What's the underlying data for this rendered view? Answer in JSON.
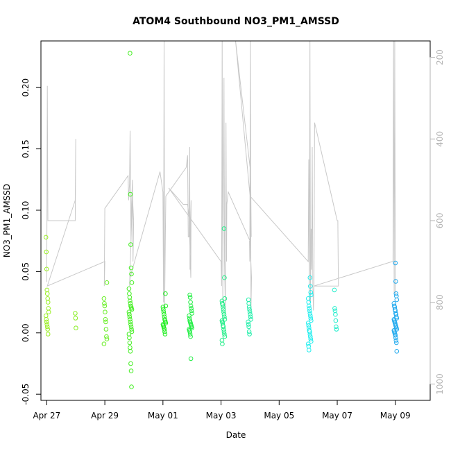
{
  "chart_data": {
    "type": "scatter",
    "title": "ATOM4 Southbound NO3_PM1_AMSSD",
    "xlabel": "Date",
    "ylabel": "NO3_PM1_AMSSD",
    "xlim": [
      -0.2,
      13.2
    ],
    "ylim": [
      -0.055,
      0.238
    ],
    "x_ticks": [
      {
        "label": "Apr 27",
        "value": 0
      },
      {
        "label": "Apr 29",
        "value": 2
      },
      {
        "label": "May 01",
        "value": 4
      },
      {
        "label": "May 03",
        "value": 6
      },
      {
        "label": "May 05",
        "value": 8
      },
      {
        "label": "May 07",
        "value": 10
      },
      {
        "label": "May 09",
        "value": 12
      }
    ],
    "y_ticks": [
      {
        "label": "-0.05",
        "value": -0.05
      },
      {
        "label": "0.00",
        "value": 0.0
      },
      {
        "label": "0.05",
        "value": 0.05
      },
      {
        "label": "0.10",
        "value": 0.1
      },
      {
        "label": "0.15",
        "value": 0.15
      },
      {
        "label": "0.20",
        "value": 0.2
      }
    ],
    "secondary_axis": {
      "series": "altitude track (unlabeled)",
      "range": [
        1040,
        160
      ],
      "reversed": true,
      "ticks": [
        {
          "label": "200",
          "value": 200
        },
        {
          "label": "400",
          "value": 400
        },
        {
          "label": "600",
          "value": 600
        },
        {
          "label": "800",
          "value": 800
        },
        {
          "label": "1000",
          "value": 1000
        }
      ]
    },
    "scatter_clusters": [
      {
        "day": 0.02,
        "color": "#99ee22",
        "values": [
          0.078,
          0.066,
          0.052,
          0.035,
          0.032,
          0.028,
          0.025,
          0.02,
          0.017,
          0.014,
          0.011,
          0.009,
          0.007,
          0.005,
          0.003,
          -0.001
        ]
      },
      {
        "day": 0.98,
        "color": "#88ee22",
        "values": [
          0.016,
          0.012,
          0.004
        ]
      },
      {
        "day": 2.02,
        "color": "#66ee22",
        "values": [
          0.041,
          0.028,
          0.024,
          0.022,
          0.017,
          0.011,
          0.009,
          0.003,
          -0.003,
          -0.005,
          -0.009
        ]
      },
      {
        "day": 2.88,
        "color": "#44ee22",
        "values": [
          0.228,
          0.113,
          0.072,
          0.053,
          0.048,
          0.041,
          0.036,
          0.032,
          0.029,
          0.026,
          0.024,
          0.022,
          0.021,
          0.02,
          0.019,
          0.017,
          0.015,
          0.013,
          0.011,
          0.009,
          0.007,
          0.005,
          0.003,
          0.001,
          -0.001,
          -0.004,
          -0.008,
          -0.012,
          -0.015,
          -0.025,
          -0.031,
          -0.044
        ]
      },
      {
        "day": 4.05,
        "color": "#22ee22",
        "values": [
          0.032,
          0.022,
          0.021,
          0.019,
          0.017,
          0.015,
          0.013,
          0.011,
          0.01,
          0.009,
          0.008,
          0.007,
          0.006,
          0.005,
          0.004,
          0.003,
          0.001,
          -0.001
        ]
      },
      {
        "day": 4.95,
        "color": "#22ee44",
        "values": [
          0.031,
          0.029,
          0.025,
          0.022,
          0.02,
          0.018,
          0.016,
          0.014,
          0.012,
          0.01,
          0.009,
          0.008,
          0.007,
          0.006,
          0.005,
          0.004,
          0.003,
          0.002,
          0.001,
          -0.001,
          -0.003,
          -0.021
        ]
      },
      {
        "day": 6.08,
        "color": "#22ee88",
        "values": [
          0.085,
          0.045,
          0.028,
          0.026,
          0.024,
          0.023,
          0.021,
          0.019,
          0.017,
          0.015,
          0.013,
          0.011,
          0.01,
          0.009,
          0.008,
          0.006,
          0.005,
          0.003,
          0.001,
          -0.001,
          -0.003,
          -0.006,
          -0.009
        ]
      },
      {
        "day": 6.98,
        "color": "#22eeaa",
        "values": [
          0.027,
          0.024,
          0.021,
          0.019,
          0.017,
          0.015,
          0.013,
          0.011,
          0.009,
          0.007,
          0.005,
          0.001,
          -0.001
        ]
      },
      {
        "day": 9.05,
        "color": "#22eeee",
        "values": [
          0.045,
          0.038,
          0.033,
          0.031,
          0.028,
          0.025,
          0.022,
          0.02,
          0.018,
          0.016,
          0.014,
          0.012,
          0.01,
          0.008,
          0.006,
          0.004,
          0.002,
          0.001,
          -0.001,
          -0.003,
          -0.005,
          -0.007,
          -0.009,
          -0.011,
          -0.014
        ]
      },
      {
        "day": 9.95,
        "color": "#22eecc",
        "values": [
          0.035,
          0.02,
          0.018,
          0.015,
          0.01,
          0.005,
          0.003
        ]
      },
      {
        "day": 12.0,
        "color": "#22aaee",
        "values": [
          0.057,
          0.042,
          0.032,
          0.03,
          0.027,
          0.024,
          0.022,
          0.021,
          0.019,
          0.018,
          0.016,
          0.015,
          0.013,
          0.012,
          0.011,
          0.01,
          0.009,
          0.008,
          0.007,
          0.006,
          0.005,
          0.004,
          0.003,
          0.002,
          0.001,
          0.0,
          -0.001,
          -0.002,
          -0.004,
          -0.006,
          -0.008,
          -0.015
        ]
      }
    ],
    "altitude_track": {
      "color": "#c8c8c8",
      "points": [
        [
          0.0,
          750
        ],
        [
          0.02,
          270
        ],
        [
          0.04,
          600
        ],
        [
          0.98,
          600
        ],
        [
          1.0,
          400
        ],
        [
          0.98,
          550
        ],
        [
          0.02,
          760
        ],
        [
          2.0,
          700
        ],
        [
          1.98,
          760
        ],
        [
          2.0,
          570
        ],
        [
          2.8,
          490
        ],
        [
          2.82,
          550
        ],
        [
          2.85,
          510
        ],
        [
          2.87,
          380
        ],
        [
          2.9,
          650
        ],
        [
          2.92,
          560
        ],
        [
          2.95,
          500
        ],
        [
          2.97,
          700
        ],
        [
          2.99,
          600
        ],
        [
          2.95,
          540
        ],
        [
          2.85,
          760
        ],
        [
          2.87,
          740
        ],
        [
          3.1,
          680
        ],
        [
          3.9,
          480
        ],
        [
          4.0,
          530
        ],
        [
          4.02,
          800
        ],
        [
          4.04,
          160
        ],
        [
          4.06,
          810
        ],
        [
          4.08,
          660
        ],
        [
          4.1,
          540
        ],
        [
          4.8,
          470
        ],
        [
          4.85,
          440
        ],
        [
          4.87,
          640
        ],
        [
          4.9,
          640
        ],
        [
          4.92,
          420
        ],
        [
          4.93,
          720
        ],
        [
          4.95,
          600
        ],
        [
          4.97,
          550
        ],
        [
          4.96,
          740
        ],
        [
          4.9,
          590
        ],
        [
          4.85,
          560
        ],
        [
          4.7,
          560
        ],
        [
          4.2,
          520
        ],
        [
          6.0,
          700
        ],
        [
          6.02,
          760
        ],
        [
          6.04,
          160
        ],
        [
          6.06,
          800
        ],
        [
          6.1,
          250
        ],
        [
          6.12,
          700
        ],
        [
          6.15,
          820
        ],
        [
          6.17,
          360
        ],
        [
          6.19,
          700
        ],
        [
          6.2,
          560
        ],
        [
          6.25,
          530
        ],
        [
          7.0,
          650
        ],
        [
          6.98,
          650
        ],
        [
          6.99,
          700
        ],
        [
          7.01,
          160
        ],
        [
          7.03,
          820
        ],
        [
          7.05,
          740
        ],
        [
          7.02,
          690
        ],
        [
          7.0,
          490
        ],
        [
          7.02,
          490
        ],
        [
          7.04,
          640
        ],
        [
          7.0,
          470
        ],
        [
          6.5,
          160
        ],
        [
          7.0,
          540
        ],
        [
          9.0,
          700
        ],
        [
          9.02,
          450
        ],
        [
          9.04,
          800
        ],
        [
          9.06,
          160
        ],
        [
          9.08,
          800
        ],
        [
          9.1,
          620
        ],
        [
          9.12,
          720
        ],
        [
          9.14,
          420
        ],
        [
          9.16,
          760
        ],
        [
          9.18,
          820
        ],
        [
          9.2,
          760
        ],
        [
          9.22,
          360
        ],
        [
          10.0,
          600
        ],
        [
          10.02,
          600
        ],
        [
          10.04,
          760
        ],
        [
          9.2,
          760
        ],
        [
          11.9,
          700
        ],
        [
          11.92,
          700
        ],
        [
          11.94,
          160
        ],
        [
          11.96,
          780
        ],
        [
          11.98,
          160
        ],
        [
          12.0,
          780
        ]
      ]
    }
  }
}
